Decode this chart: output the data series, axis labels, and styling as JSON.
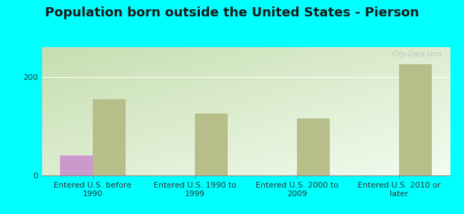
{
  "title": "Population born outside the United States - Pierson",
  "categories": [
    "Entered U.S. before\n1990",
    "Entered U.S. 1990 to\n1999",
    "Entered U.S. 2000 to\n2009",
    "Entered U.S. 2010 or\nlater"
  ],
  "native_values": [
    40,
    0,
    0,
    0
  ],
  "foreign_values": [
    155,
    125,
    115,
    225
  ],
  "native_color": "#cc99cc",
  "foreign_color": "#b8be8a",
  "background_outer": "#00ffff",
  "background_inner_topleft": "#c8ddb0",
  "background_inner_bottomright": "#f0faf0",
  "ylim": [
    0,
    260
  ],
  "yticks": [
    0,
    200
  ],
  "bar_width": 0.32,
  "watermark": "City-Data.com",
  "title_fontsize": 13,
  "tick_fontsize": 8,
  "legend_fontsize": 9,
  "grid_color": "#dddddd"
}
